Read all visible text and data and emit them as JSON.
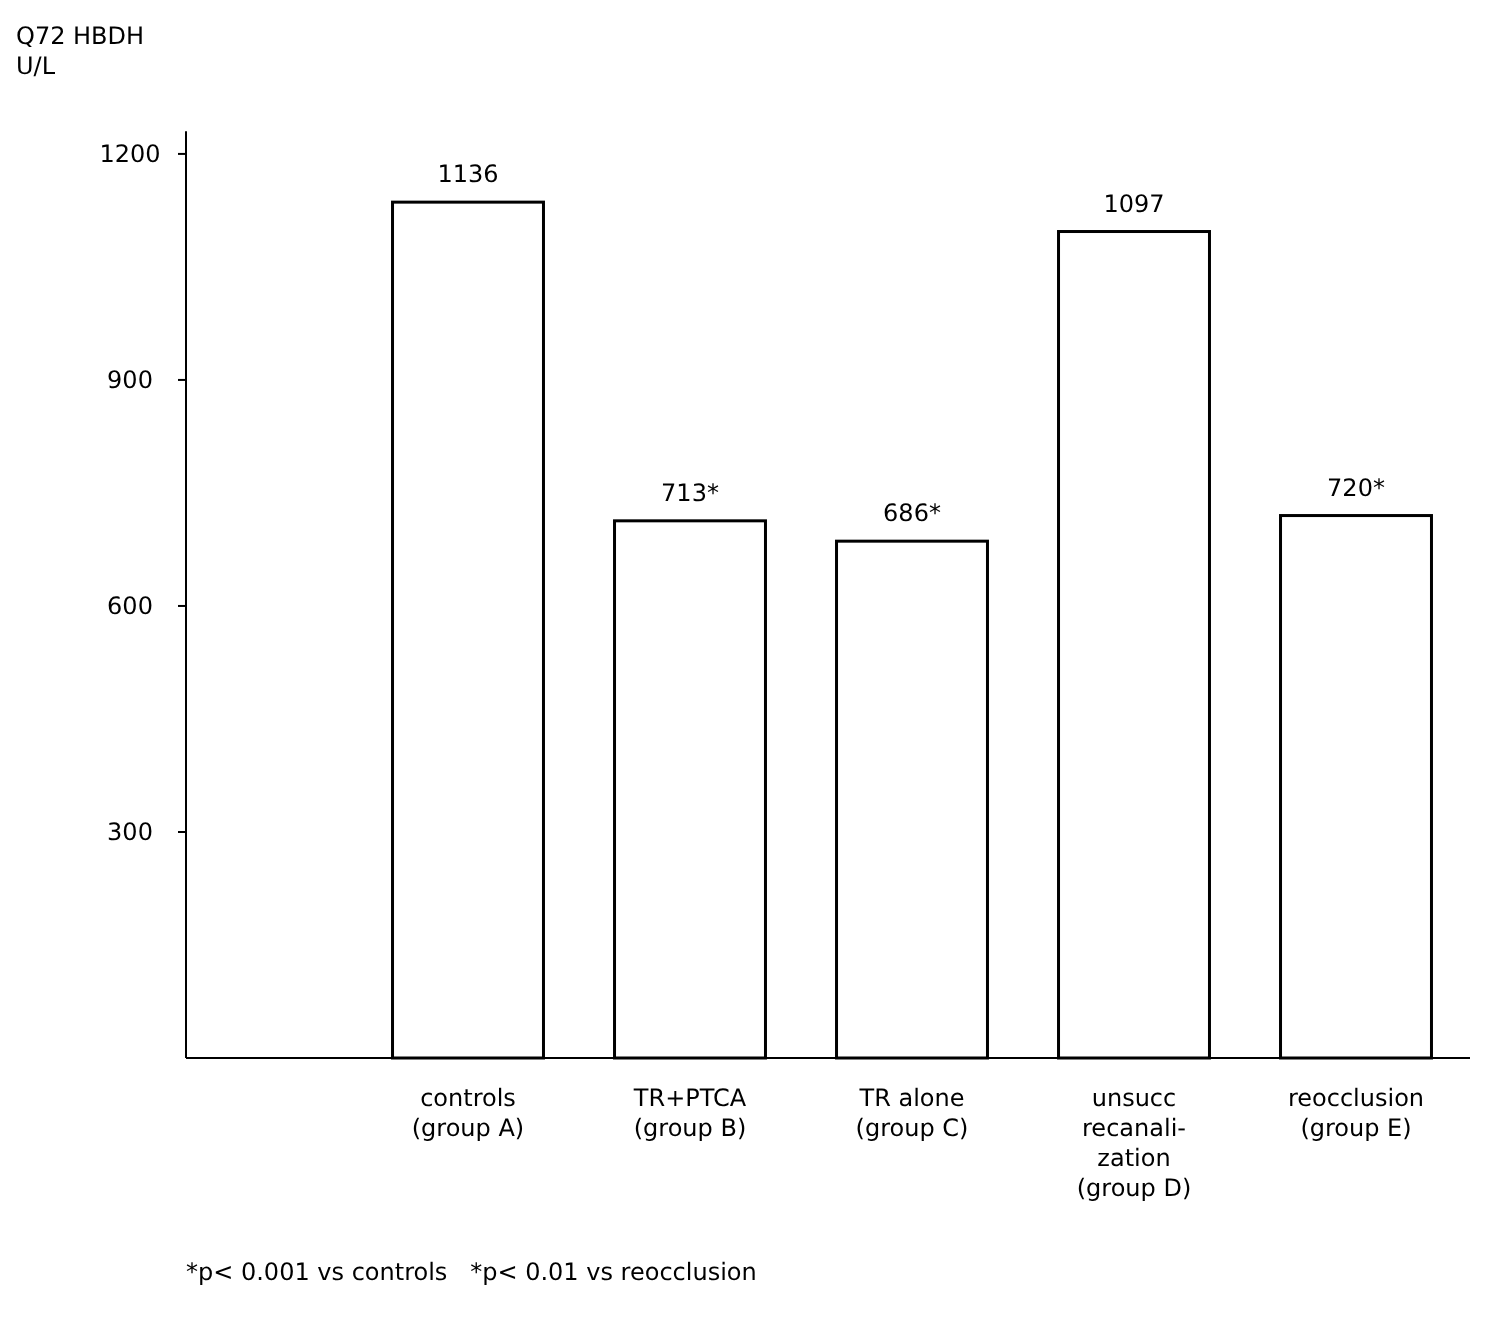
{
  "chart_data": {
    "type": "bar",
    "ylabel": "Q72 HBDH\nU/L",
    "categories": [
      "controls\n(group A)",
      "TR+PTCA\n(group B)",
      "TR alone\n(group C)",
      "unsucc\nrecanali-\nzation\n(group D)",
      "reocclusion\n(group E)"
    ],
    "values": [
      1136,
      713,
      686,
      1097,
      720
    ],
    "value_labels": [
      "1136",
      "713*",
      "686*",
      "1097",
      "720*"
    ],
    "color": "#ffffff",
    "ylim": [
      0,
      1230
    ],
    "yticks": [
      300,
      600,
      900,
      1200
    ],
    "grid": false,
    "annotations": [
      "*p< 0.001 vs controls   *p< 0.01 vs reocclusion"
    ]
  }
}
